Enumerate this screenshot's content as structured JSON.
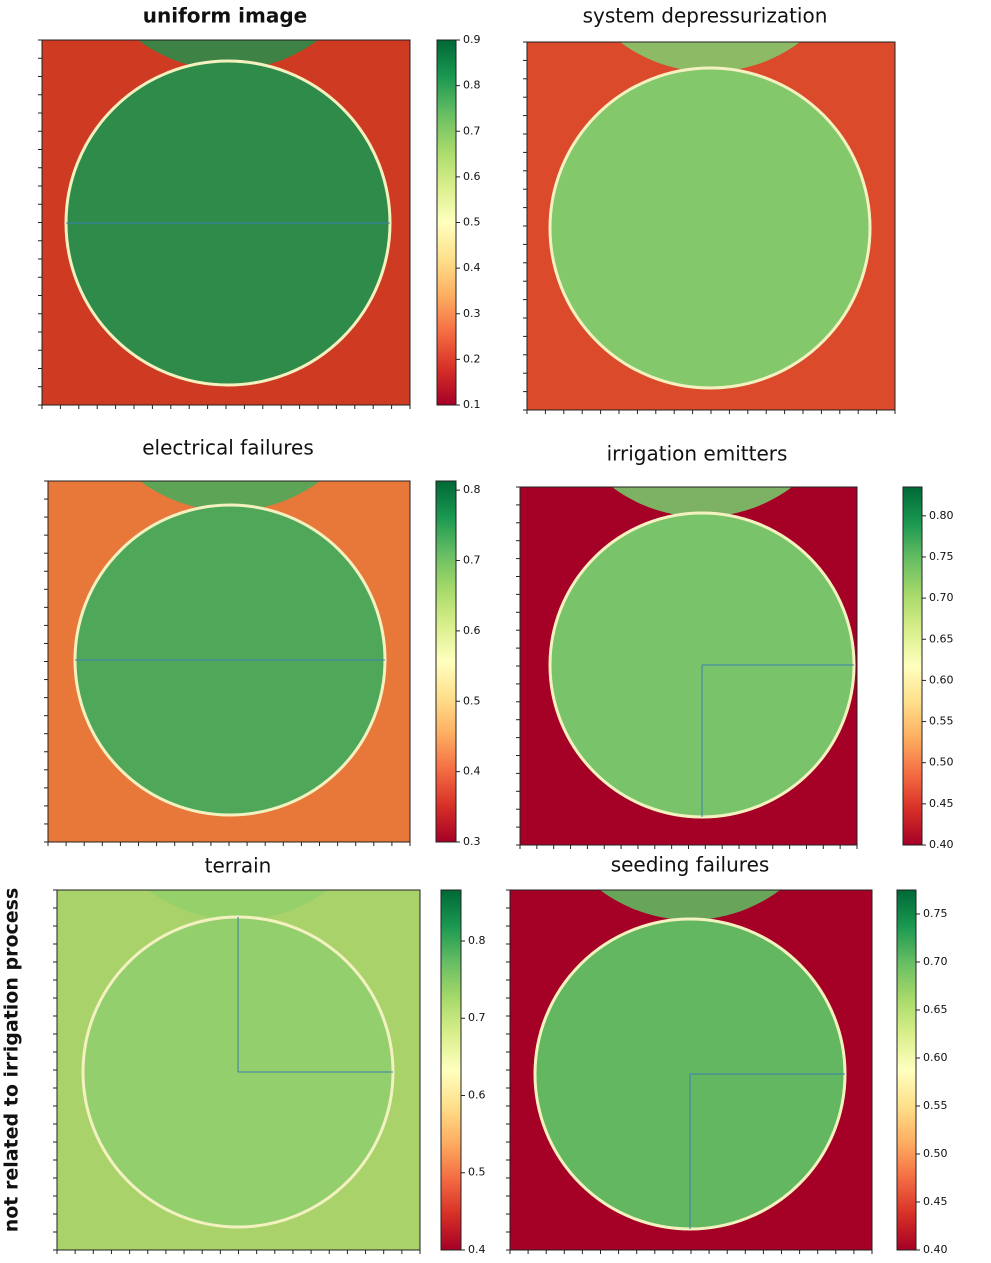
{
  "side_label": "not related to irrigation process",
  "chart_data": [
    {
      "type": "heatmap",
      "title": "uniform image",
      "clim": [
        0.1,
        0.9
      ],
      "yticks": [
        0.1,
        0.2,
        0.3,
        0.4,
        0.5,
        0.6,
        0.7,
        0.8,
        0.9
      ]
    },
    {
      "type": "heatmap",
      "title": "system depressurization"
    },
    {
      "type": "heatmap",
      "title": "electrical failures",
      "clim": [
        0.3,
        0.813
      ],
      "yticks": [
        0.3,
        0.4,
        0.5,
        0.6,
        0.7,
        0.8
      ]
    },
    {
      "type": "heatmap",
      "title": "irrigation emitters",
      "clim": [
        0.4,
        0.835
      ],
      "yticks": [
        {
          "value": 0.4,
          "label": "0.40"
        },
        {
          "value": 0.45,
          "label": "0.45"
        },
        {
          "value": 0.5,
          "label": "0.50"
        },
        {
          "value": 0.55,
          "label": "0.55"
        },
        {
          "value": 0.6,
          "label": "0.60"
        },
        {
          "value": 0.65,
          "label": "0.65"
        },
        {
          "value": 0.7,
          "label": "0.70"
        },
        {
          "value": 0.75,
          "label": "0.75"
        },
        {
          "value": 0.8,
          "label": "0.80"
        }
      ]
    },
    {
      "type": "heatmap",
      "title": "terrain",
      "clim": [
        0.4,
        0.866
      ],
      "yticks": [
        0.4,
        0.5,
        0.6,
        0.7,
        0.8
      ]
    },
    {
      "type": "heatmap",
      "title": "seeding failures",
      "clim": [
        0.4,
        0.775
      ],
      "yticks": [
        {
          "value": 0.4,
          "label": "0.40"
        },
        {
          "value": 0.45,
          "label": "0.45"
        },
        {
          "value": 0.5,
          "label": "0.50"
        },
        {
          "value": 0.55,
          "label": "0.55"
        },
        {
          "value": 0.6,
          "label": "0.60"
        },
        {
          "value": 0.65,
          "label": "0.65"
        },
        {
          "value": 0.7,
          "label": "0.70"
        },
        {
          "value": 0.75,
          "label": "0.75"
        }
      ]
    }
  ]
}
